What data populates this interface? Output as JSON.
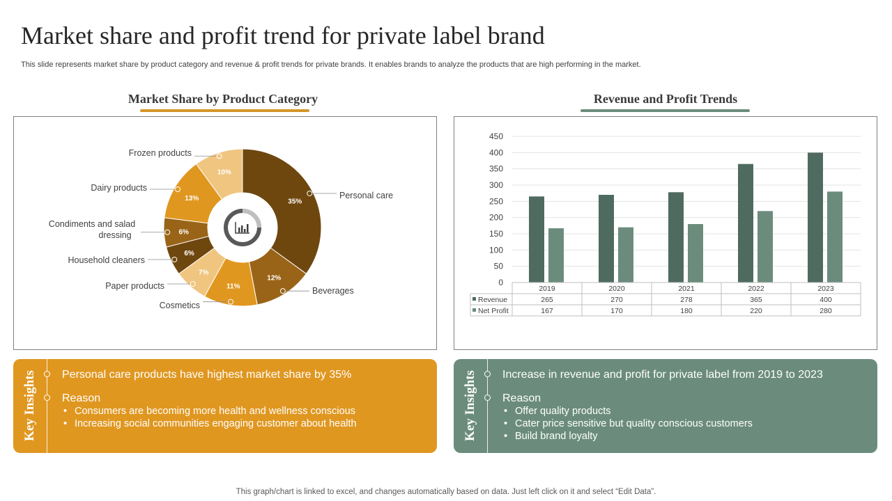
{
  "title": "Market share and profit trend for private label brand",
  "subtitle": "This slide represents market share by product category and revenue & profit trends for private  brands. It enables brands to analyze the products that are high performing in the market.",
  "left_panel": {
    "heading": "Market Share by Product Category",
    "insight": {
      "label": "Key Insights",
      "headline": "Personal care products have highest market share by 35%",
      "reason_title": "Reason",
      "bullets": [
        "Consumers are becoming more health and wellness conscious",
        "Increasing social communities engaging customer about health"
      ]
    }
  },
  "right_panel": {
    "heading": "Revenue and Profit Trends",
    "insight": {
      "label": "Key Insights",
      "headline": "Increase  in revenue  and profit for private label from 2019 to 2023",
      "reason_title": "Reason",
      "bullets": [
        "Offer quality products",
        "Cater price sensitive but quality conscious customers",
        "Build brand loyalty"
      ]
    }
  },
  "chart_data": [
    {
      "type": "pie",
      "subtype": "donut",
      "title": "Market Share by Product Category",
      "categories": [
        "Personal care",
        "Beverages",
        "Cosmetics",
        "Paper products",
        "Household cleaners",
        "Condiments and salad dressing",
        "Dairy products",
        "Frozen products"
      ],
      "values": [
        35,
        12,
        11,
        7,
        6,
        6,
        13,
        10
      ],
      "value_labels": [
        "35%",
        "12%",
        "11%",
        "7%",
        "6%",
        "6%",
        "13%",
        "10%"
      ],
      "colors": [
        "#6e470f",
        "#9a6418",
        "#e09720",
        "#f0c57f",
        "#6e470f",
        "#9a6418",
        "#e09720",
        "#f0c57f"
      ],
      "center_icon": "chart-icon"
    },
    {
      "type": "bar",
      "title": "Revenue and Profit Trends",
      "categories": [
        "2019",
        "2020",
        "2021",
        "2022",
        "2023"
      ],
      "series": [
        {
          "name": "Revenue",
          "values": [
            265,
            270,
            278,
            365,
            400
          ],
          "color": "#4f6b5f"
        },
        {
          "name": "Net Profit",
          "values": [
            167,
            170,
            180,
            220,
            280
          ],
          "color": "#6b8c7c"
        }
      ],
      "ylim": [
        0,
        450
      ],
      "yticks": [
        0,
        50,
        100,
        150,
        200,
        250,
        300,
        350,
        400,
        450
      ],
      "grid": true,
      "data_table": true
    }
  ],
  "footer": "This graph/chart is linked to excel,  and changes automatically based on data. Just left click on it and select “Edit Data”."
}
